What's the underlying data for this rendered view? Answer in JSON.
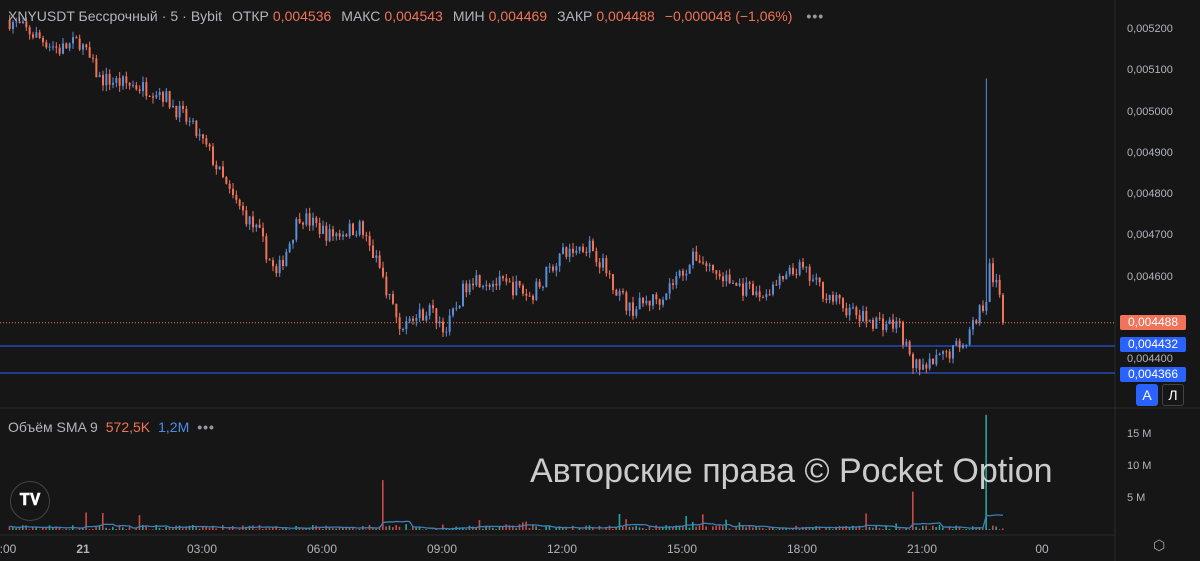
{
  "header": {
    "symbol": "XNYUSDT Бессрочный",
    "interval": "5",
    "exchange": "Bybit",
    "open_label": "ОТКР",
    "open": "0,004536",
    "high_label": "МАКС",
    "high": "0,004543",
    "low_label": "МИН",
    "low": "0,004469",
    "close_label": "ЗАКР",
    "close": "0,004488",
    "change": "−0,000048 (−1,06%)",
    "more": "•••"
  },
  "volume_legend": {
    "label": "Объём SMA 9",
    "volume": "572,5K",
    "sma": "1,2M",
    "more": "•••"
  },
  "price_axis": {
    "ticks": [
      "0,005200",
      "0,005100",
      "0,005000",
      "0,004900",
      "0,004800",
      "0,004700",
      "0,004600",
      "0,004400"
    ],
    "tick_values": [
      0.0052,
      0.0051,
      0.005,
      0.0049,
      0.0048,
      0.0047,
      0.0046,
      0.0044
    ],
    "last_price": "0,004488",
    "line1": "0,004432",
    "line2": "0,004366"
  },
  "volume_axis": {
    "ticks": [
      "15 M",
      "10 M",
      "5 M"
    ],
    "tick_values": [
      15,
      10,
      5
    ]
  },
  "time_axis": {
    "ticks": [
      ":00",
      "21",
      "03:00",
      "06:00",
      "09:00",
      "12:00",
      "15:00",
      "18:00",
      "21:00",
      "00"
    ]
  },
  "buttons": {
    "auto": "A",
    "log": "Л"
  },
  "logo": "TV",
  "watermark": "Авторские права © Pocket Option",
  "colors": {
    "up": "#5b8fd6",
    "down": "#f0735a",
    "vol_up": "#26a69a",
    "vol_down": "#c94a46",
    "sma": "#3d7fb8",
    "line": "#2962ff",
    "last": "#f0735a"
  },
  "chart_data": {
    "type": "candlestick",
    "interval_min": 5,
    "price_path": [
      [
        "20 22:10",
        0.00522
      ],
      [
        "20 23:25",
        0.00515
      ],
      [
        "20 23:55",
        0.00517
      ],
      [
        "21 00:25",
        0.00508
      ],
      [
        "21 01:55",
        0.00505
      ],
      [
        "21 02:40",
        0.00497
      ],
      [
        "21 03:10",
        0.0049
      ],
      [
        "21 03:40",
        0.0048
      ],
      [
        "21 04:25",
        0.0047
      ],
      [
        "21 04:50",
        0.0046
      ],
      [
        "21 05:25",
        0.00475
      ],
      [
        "21 06:10",
        0.0047
      ],
      [
        "21 06:55",
        0.00472
      ],
      [
        "21 07:25",
        0.00462
      ],
      [
        "21 07:55",
        0.00448
      ],
      [
        "21 08:40",
        0.00452
      ],
      [
        "21 09:05",
        0.00447
      ],
      [
        "21 09:40",
        0.0046
      ],
      [
        "21 10:55",
        0.00457
      ],
      [
        "21 11:10",
        0.00455
      ],
      [
        "21 11:55",
        0.00465
      ],
      [
        "21 12:40",
        0.00468
      ],
      [
        "21 13:10",
        0.0046
      ],
      [
        "21 13:40",
        0.00452
      ],
      [
        "21 14:25",
        0.00455
      ],
      [
        "21 15:20",
        0.00465
      ],
      [
        "21 15:55",
        0.0046
      ],
      [
        "21 16:55",
        0.00455
      ],
      [
        "21 17:55",
        0.00462
      ],
      [
        "21 18:40",
        0.00455
      ],
      [
        "21 19:25",
        0.0045
      ],
      [
        "21 20:25",
        0.00448
      ],
      [
        "21 20:40",
        0.0044
      ],
      [
        "21 20:55",
        0.00437
      ],
      [
        "21 21:25",
        0.0044
      ],
      [
        "21 22:05",
        0.00445
      ],
      [
        "21 22:20",
        0.0045
      ],
      [
        "21 22:35",
        0.00455
      ],
      [
        "21 22:40",
        0.00462
      ],
      [
        "21 22:55",
        0.00455
      ],
      [
        "21 23:00",
        0.004488
      ]
    ],
    "spike_high": [
      "21 22:35",
      0.00508
    ],
    "volume_spikes_M": [
      [
        "21 07:30",
        7.8
      ],
      [
        "21 20:45",
        6
      ],
      [
        "21 22:35",
        18
      ]
    ]
  }
}
